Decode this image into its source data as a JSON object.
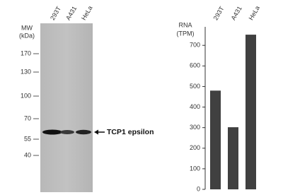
{
  "blot": {
    "mw_label": "MW",
    "mw_unit": "(kDa)",
    "lanes": [
      "293T",
      "A431",
      "HeLa"
    ],
    "markers": [
      170,
      130,
      100,
      70,
      55,
      40
    ],
    "band_label": "TCP1 epsilon"
  },
  "chart_data": {
    "type": "bar",
    "ylabel": [
      "RNA",
      "(TPM)"
    ],
    "categories": [
      "293T",
      "A431",
      "HeLa"
    ],
    "values": [
      480,
      302,
      752
    ],
    "color": "#404040",
    "ylim": [
      0,
      790
    ],
    "yticks": [
      0,
      100,
      200,
      300,
      400,
      500,
      600,
      700
    ]
  }
}
